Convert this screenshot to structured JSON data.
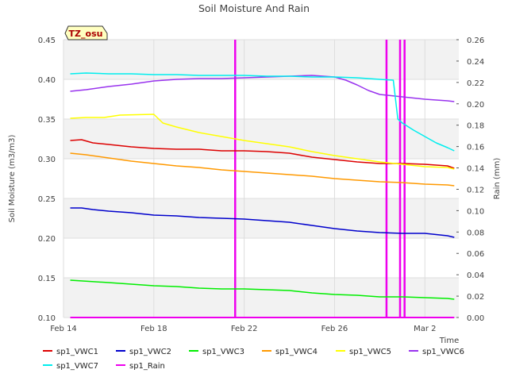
{
  "chart_data": {
    "type": "line",
    "title": "Soil Moisture And Rain",
    "badge": "TZ_osu",
    "xlabel": "Time",
    "ylabel": "Soil Moisture (m3/m3)",
    "y2label": "Rain (mm)",
    "xlim": [
      0,
      17.5
    ],
    "x_ticks": [
      {
        "x": 0,
        "label": "Feb 14"
      },
      {
        "x": 4,
        "label": "Feb 18"
      },
      {
        "x": 8,
        "label": "Feb 22"
      },
      {
        "x": 12,
        "label": "Feb 26"
      },
      {
        "x": 16,
        "label": "Mar 2"
      }
    ],
    "ylim": [
      0.1,
      0.45
    ],
    "y_ticks": [
      "0.10",
      "0.15",
      "0.20",
      "0.25",
      "0.30",
      "0.35",
      "0.40",
      "0.45"
    ],
    "y2lim": [
      0.0,
      0.26
    ],
    "y2_ticks": [
      "0.00",
      "0.02",
      "0.04",
      "0.06",
      "0.08",
      "0.10",
      "0.12",
      "0.14",
      "0.16",
      "0.18",
      "0.20",
      "0.22",
      "0.24",
      "0.26"
    ],
    "grid": true,
    "legend_position": "bottom",
    "series": [
      {
        "name": "sp1_VWC1",
        "color": "#dd0000",
        "axis": "left",
        "x": [
          0.3,
          0.8,
          1.3,
          2,
          3,
          4,
          5,
          6,
          7,
          8,
          9,
          10,
          11,
          12,
          13,
          14,
          15,
          16,
          17,
          17.3
        ],
        "y": [
          0.323,
          0.324,
          0.32,
          0.318,
          0.315,
          0.313,
          0.312,
          0.312,
          0.31,
          0.31,
          0.309,
          0.307,
          0.302,
          0.299,
          0.296,
          0.294,
          0.294,
          0.293,
          0.291,
          0.288
        ]
      },
      {
        "name": "sp1_VWC2",
        "color": "#0000cc",
        "axis": "left",
        "x": [
          0.3,
          0.8,
          1.3,
          2,
          3,
          4,
          5,
          6,
          7,
          8,
          9,
          10,
          11,
          12,
          13,
          14,
          15,
          16,
          17,
          17.3
        ],
        "y": [
          0.238,
          0.238,
          0.236,
          0.234,
          0.232,
          0.229,
          0.228,
          0.226,
          0.225,
          0.224,
          0.222,
          0.22,
          0.216,
          0.212,
          0.209,
          0.207,
          0.206,
          0.206,
          0.203,
          0.201
        ]
      },
      {
        "name": "sp1_VWC3",
        "color": "#00ee00",
        "axis": "left",
        "x": [
          0.3,
          2,
          4,
          5,
          6,
          7,
          8,
          9,
          10,
          11,
          12,
          13,
          14,
          15,
          16,
          17,
          17.3
        ],
        "y": [
          0.147,
          0.144,
          0.14,
          0.139,
          0.137,
          0.136,
          0.136,
          0.135,
          0.134,
          0.131,
          0.129,
          0.128,
          0.126,
          0.126,
          0.125,
          0.124,
          0.123
        ]
      },
      {
        "name": "sp1_VWC4",
        "color": "#ff9900",
        "axis": "left",
        "x": [
          0.3,
          1,
          2,
          3,
          4,
          5,
          6,
          7,
          8,
          9,
          10,
          11,
          12,
          13,
          14,
          15,
          16,
          17,
          17.3
        ],
        "y": [
          0.307,
          0.305,
          0.301,
          0.297,
          0.294,
          0.291,
          0.289,
          0.286,
          0.284,
          0.282,
          0.28,
          0.278,
          0.275,
          0.273,
          0.271,
          0.27,
          0.268,
          0.267,
          0.266
        ]
      },
      {
        "name": "sp1_VWC5",
        "color": "#ffff00",
        "axis": "left",
        "x": [
          0.3,
          1,
          1.8,
          2.5,
          4,
          4.4,
          5,
          6,
          7,
          8,
          9,
          10,
          11,
          12,
          13,
          14,
          15,
          16,
          17,
          17.3
        ],
        "y": [
          0.351,
          0.352,
          0.352,
          0.355,
          0.356,
          0.345,
          0.34,
          0.333,
          0.328,
          0.323,
          0.319,
          0.315,
          0.309,
          0.304,
          0.3,
          0.296,
          0.293,
          0.29,
          0.289,
          0.287
        ]
      },
      {
        "name": "sp1_VWC6",
        "color": "#9933ee",
        "axis": "left",
        "x": [
          0.3,
          1,
          2,
          3,
          4,
          5,
          6,
          7,
          8,
          9,
          10,
          11,
          12,
          12.5,
          13,
          13.5,
          14,
          15,
          16,
          17,
          17.3
        ],
        "y": [
          0.385,
          0.387,
          0.391,
          0.394,
          0.398,
          0.4,
          0.401,
          0.401,
          0.402,
          0.403,
          0.404,
          0.405,
          0.403,
          0.399,
          0.393,
          0.386,
          0.381,
          0.378,
          0.375,
          0.373,
          0.372
        ]
      },
      {
        "name": "sp1_VWC7",
        "color": "#00eeee",
        "axis": "left",
        "x": [
          0.3,
          1,
          2,
          3,
          4,
          5,
          6,
          7,
          8,
          9,
          10,
          11,
          12,
          13,
          14,
          14.6,
          14.8,
          15,
          15.5,
          16,
          16.5,
          17,
          17.3
        ],
        "y": [
          0.407,
          0.408,
          0.407,
          0.407,
          0.406,
          0.406,
          0.405,
          0.405,
          0.405,
          0.404,
          0.404,
          0.403,
          0.403,
          0.402,
          0.4,
          0.399,
          0.35,
          0.345,
          0.336,
          0.328,
          0.32,
          0.314,
          0.31
        ]
      },
      {
        "name": "sp1_Rain",
        "color": "#ee00ee",
        "axis": "right",
        "render": "bars",
        "x": [
          7.6,
          14.3,
          14.9,
          15.1
        ],
        "y": [
          0.26,
          0.26,
          0.26,
          0.26
        ]
      }
    ]
  }
}
